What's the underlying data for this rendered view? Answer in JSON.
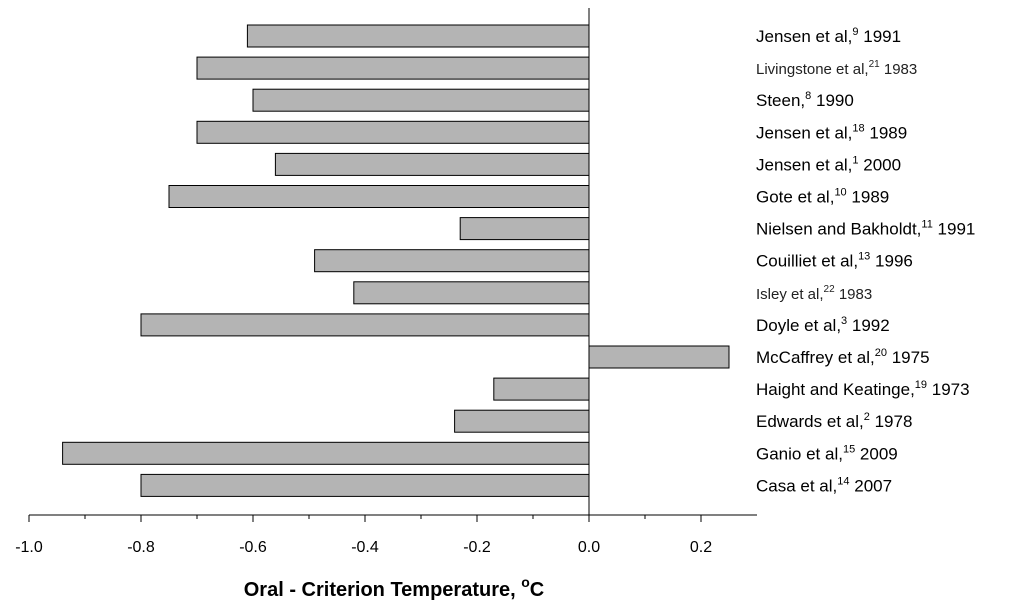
{
  "colors": {
    "bar_fill": "#b4b4b4",
    "bar_stroke": "#000000",
    "axis": "#000000"
  },
  "chart_data": {
    "type": "bar",
    "orientation": "horizontal",
    "categories": [
      {
        "name": "Jensen et al,",
        "sup": "9",
        "year": "1991"
      },
      {
        "name": "Livingstone  et al,",
        "sup": "21",
        "year": "1983"
      },
      {
        "name": "Steen,",
        "sup": "8",
        "year": "1990"
      },
      {
        "name": "Jensen et al,",
        "sup": "18",
        "year": "1989"
      },
      {
        "name": "Jensen et al,",
        "sup": "1",
        "year": "2000"
      },
      {
        "name": "Gote et al,",
        "sup": "10",
        "year": "1989"
      },
      {
        "name": "Nielsen and Bakholdt,",
        "sup": "11",
        "year": "1991"
      },
      {
        "name": "Couilliet et al,",
        "sup": "13",
        "year": "1996"
      },
      {
        "name": "Isley et al,",
        "sup": "22",
        "year": "1983"
      },
      {
        "name": "Doyle et al,",
        "sup": "3",
        "year": "1992"
      },
      {
        "name": "McCaffrey et al,",
        "sup": "20",
        "year": "1975"
      },
      {
        "name": "Haight and Keatinge,",
        "sup": "19",
        "year": "1973"
      },
      {
        "name": "Edwards et al,",
        "sup": "2",
        "year": "1978"
      },
      {
        "name": "Ganio et al,",
        "sup": "15",
        "year": "2009"
      },
      {
        "name": "Casa et al,",
        "sup": "14",
        "year": "2007"
      }
    ],
    "values": [
      -0.61,
      -0.7,
      -0.6,
      -0.7,
      -0.56,
      -0.75,
      -0.23,
      -0.49,
      -0.42,
      -0.8,
      0.25,
      -0.17,
      -0.24,
      -0.94,
      -0.8
    ],
    "xlim": [
      -1.0,
      0.3
    ],
    "xticks": [
      "-1.0",
      "-0.8",
      "-0.6",
      "-0.4",
      "-0.2",
      "0.0",
      "0.2"
    ],
    "xtick_values": [
      -1.0,
      -0.8,
      -0.6,
      -0.4,
      -0.2,
      0.0,
      0.2
    ],
    "xlabel": "Oral - Criterion Temperature, ",
    "xlabel_sup": "o",
    "xlabel_unit": "C",
    "grid": false
  }
}
